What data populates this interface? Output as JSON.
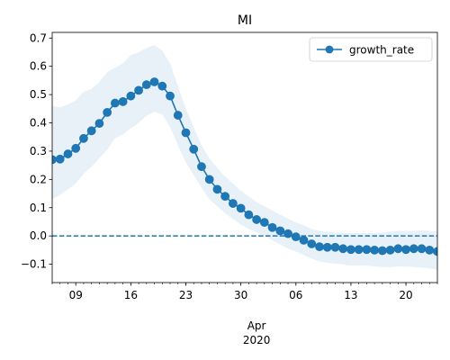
{
  "chart_data": {
    "type": "line",
    "title": "MI",
    "xlabel": "",
    "ylabel": "",
    "x_start": "2020-03-06",
    "x_end": "2020-04-24",
    "x": [
      "2020-03-06",
      "2020-03-07",
      "2020-03-08",
      "2020-03-09",
      "2020-03-10",
      "2020-03-11",
      "2020-03-12",
      "2020-03-13",
      "2020-03-14",
      "2020-03-15",
      "2020-03-16",
      "2020-03-17",
      "2020-03-18",
      "2020-03-19",
      "2020-03-20",
      "2020-03-21",
      "2020-03-22",
      "2020-03-23",
      "2020-03-24",
      "2020-03-25",
      "2020-03-26",
      "2020-03-27",
      "2020-03-28",
      "2020-03-29",
      "2020-03-30",
      "2020-03-31",
      "2020-04-01",
      "2020-04-02",
      "2020-04-03",
      "2020-04-04",
      "2020-04-05",
      "2020-04-06",
      "2020-04-07",
      "2020-04-08",
      "2020-04-09",
      "2020-04-10",
      "2020-04-11",
      "2020-04-12",
      "2020-04-13",
      "2020-04-14",
      "2020-04-15",
      "2020-04-16",
      "2020-04-17",
      "2020-04-18",
      "2020-04-19",
      "2020-04-20",
      "2020-04-21",
      "2020-04-22",
      "2020-04-23",
      "2020-04-24"
    ],
    "ylim": [
      -0.165,
      0.72
    ],
    "yticks": [
      -0.1,
      0.0,
      0.1,
      0.2,
      0.3,
      0.4,
      0.5,
      0.6,
      0.7
    ],
    "ytick_labels": [
      "−0.1",
      "0.0",
      "0.1",
      "0.2",
      "0.3",
      "0.4",
      "0.5",
      "0.6",
      "0.7"
    ],
    "xtick_major": [
      {
        "date": "2020-03-09",
        "label": "09"
      },
      {
        "date": "2020-03-16",
        "label": "16"
      },
      {
        "date": "2020-03-23",
        "label": "23"
      },
      {
        "date": "2020-03-30",
        "label": "30"
      },
      {
        "date": "2020-04-06",
        "label": "06"
      },
      {
        "date": "2020-04-13",
        "label": "13"
      },
      {
        "date": "2020-04-20",
        "label": "20"
      }
    ],
    "x_secondary_label": "Apr",
    "x_year_label": "2020",
    "grid": false,
    "legend_position": "top-right",
    "series": [
      {
        "name": "growth_rate",
        "color": "#1f77b4",
        "marker": "circle",
        "values": [
          0.27,
          0.272,
          0.29,
          0.31,
          0.345,
          0.372,
          0.398,
          0.437,
          0.47,
          0.475,
          0.495,
          0.515,
          0.535,
          0.545,
          0.53,
          0.495,
          0.427,
          0.365,
          0.307,
          0.245,
          0.2,
          0.165,
          0.14,
          0.115,
          0.098,
          0.075,
          0.058,
          0.048,
          0.03,
          0.018,
          0.008,
          -0.003,
          -0.015,
          -0.028,
          -0.038,
          -0.04,
          -0.04,
          -0.045,
          -0.048,
          -0.048,
          -0.048,
          -0.05,
          -0.052,
          -0.05,
          -0.045,
          -0.048,
          -0.045,
          -0.045,
          -0.05,
          -0.055
        ],
        "band_upper": [
          0.46,
          0.455,
          0.465,
          0.48,
          0.51,
          0.52,
          0.545,
          0.58,
          0.595,
          0.61,
          0.64,
          0.65,
          0.665,
          0.675,
          0.655,
          0.61,
          0.53,
          0.45,
          0.385,
          0.32,
          0.275,
          0.24,
          0.21,
          0.185,
          0.16,
          0.14,
          0.12,
          0.105,
          0.09,
          0.075,
          0.062,
          0.048,
          0.038,
          0.025,
          0.018,
          0.015,
          0.012,
          0.01,
          0.01,
          0.01,
          0.01,
          0.01,
          0.012,
          0.015,
          0.018,
          0.018,
          0.018,
          0.02,
          0.018,
          0.015
        ],
        "band_lower": [
          0.13,
          0.145,
          0.165,
          0.185,
          0.22,
          0.245,
          0.275,
          0.305,
          0.345,
          0.36,
          0.38,
          0.4,
          0.425,
          0.44,
          0.43,
          0.385,
          0.32,
          0.26,
          0.215,
          0.17,
          0.13,
          0.105,
          0.08,
          0.06,
          0.04,
          0.025,
          0.012,
          0.0,
          -0.015,
          -0.03,
          -0.045,
          -0.055,
          -0.068,
          -0.08,
          -0.09,
          -0.095,
          -0.098,
          -0.1,
          -0.105,
          -0.105,
          -0.105,
          -0.108,
          -0.11,
          -0.11,
          -0.108,
          -0.108,
          -0.11,
          -0.112,
          -0.115,
          -0.12
        ]
      }
    ],
    "reference_line": {
      "y": 0.0,
      "style": "dashed",
      "color": "#1f77b4"
    },
    "band_color": "#1f77b4"
  }
}
